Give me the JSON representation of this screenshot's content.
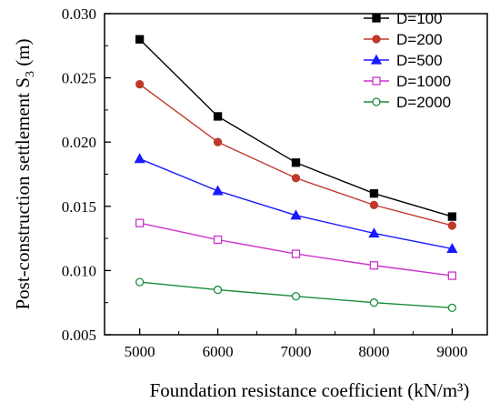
{
  "chart_data": {
    "type": "line",
    "title": "",
    "xlabel": "Foundation resistance coefficient (kN/m³)",
    "ylabel_main": "Post-construction settlement S",
    "ylabel_sub": "3",
    "ylabel_unit": " (m)",
    "x": [
      5000,
      6000,
      7000,
      8000,
      9000
    ],
    "x_ticks": [
      "5000",
      "6000",
      "7000",
      "8000",
      "9000"
    ],
    "xlim": [
      4550,
      9450
    ],
    "ylim": [
      0.005,
      0.03
    ],
    "y_ticks": [
      "0.005",
      "0.010",
      "0.015",
      "0.020",
      "0.025",
      "0.030"
    ],
    "y_tick_values": [
      0.005,
      0.01,
      0.015,
      0.02,
      0.025,
      0.03
    ],
    "grid": false,
    "legend_position": "top-right",
    "series": [
      {
        "name": "D=100",
        "values": [
          0.028,
          0.022,
          0.0184,
          0.016,
          0.0142
        ],
        "color": "#000000",
        "marker": "square",
        "filled": true
      },
      {
        "name": "D=200",
        "values": [
          0.0245,
          0.02,
          0.0172,
          0.0151,
          0.0135
        ],
        "color": "#c0392b",
        "marker": "circle",
        "filled": true
      },
      {
        "name": "D=500",
        "values": [
          0.0187,
          0.0162,
          0.0143,
          0.0129,
          0.0117
        ],
        "color": "#1a1aff",
        "marker": "triangle",
        "filled": true
      },
      {
        "name": "D=1000",
        "values": [
          0.0137,
          0.0124,
          0.0113,
          0.0104,
          0.0096
        ],
        "color": "#cc33cc",
        "marker": "square",
        "filled": false
      },
      {
        "name": "D=2000",
        "values": [
          0.0091,
          0.0085,
          0.008,
          0.0075,
          0.0071
        ],
        "color": "#1a8c3c",
        "marker": "circle",
        "filled": false
      }
    ]
  }
}
